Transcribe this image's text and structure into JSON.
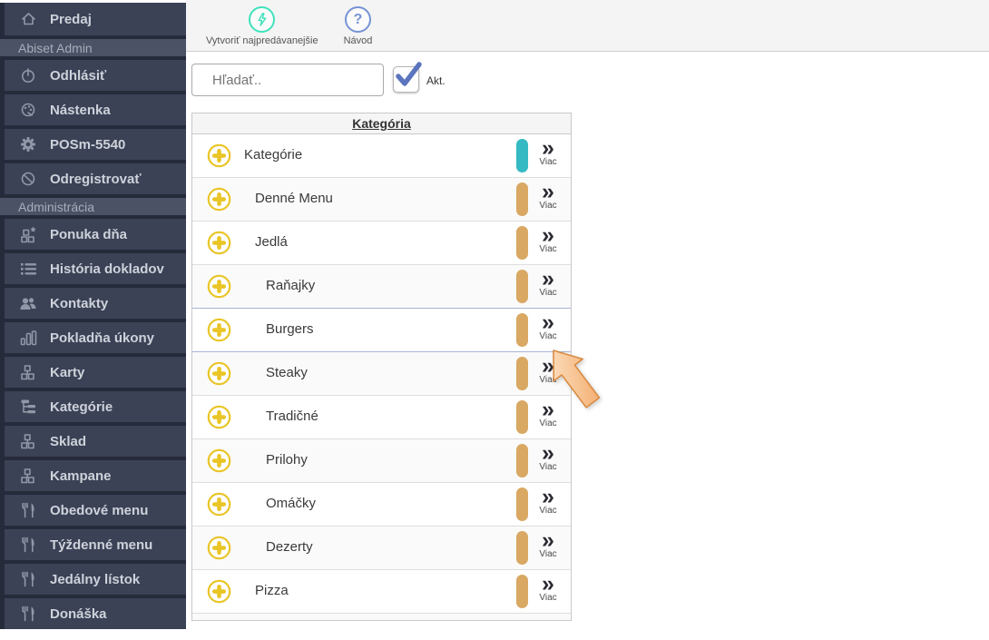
{
  "sidebar": {
    "items": [
      {
        "label": "Predaj",
        "icon": "home",
        "type": "item"
      },
      {
        "label": "Abiset Admin",
        "type": "header"
      },
      {
        "label": "Odhlásiť",
        "icon": "power",
        "type": "item"
      },
      {
        "label": "Nástenka",
        "icon": "palette",
        "type": "item"
      },
      {
        "label": "POSm-5540",
        "icon": "gear",
        "type": "item"
      },
      {
        "label": "Odregistrovať",
        "icon": "slash-circle",
        "type": "item"
      },
      {
        "label": "Administrácia",
        "type": "header"
      },
      {
        "label": "Ponuka dňa",
        "icon": "blocks-star",
        "type": "item"
      },
      {
        "label": "História dokladov",
        "icon": "list",
        "type": "item"
      },
      {
        "label": "Kontakty",
        "icon": "people",
        "type": "item"
      },
      {
        "label": "Pokladňa úkony",
        "icon": "bar-chart",
        "type": "item"
      },
      {
        "label": "Karty",
        "icon": "blocks",
        "type": "item"
      },
      {
        "label": "Kategórie",
        "icon": "tree",
        "type": "item"
      },
      {
        "label": "Sklad",
        "icon": "blocks",
        "type": "item"
      },
      {
        "label": "Kampane",
        "icon": "blocks",
        "type": "item"
      },
      {
        "label": "Obedové menu",
        "icon": "cutlery",
        "type": "item"
      },
      {
        "label": "Týždenné menu",
        "icon": "cutlery",
        "type": "item"
      },
      {
        "label": "Jedálny lístok",
        "icon": "cutlery",
        "type": "item"
      },
      {
        "label": "Donáška",
        "icon": "cutlery",
        "type": "item"
      }
    ]
  },
  "toolbar": {
    "buttons": [
      {
        "label": "Vytvoriť najpredávanejšie",
        "icon": "lightning-icon",
        "color": "#3fe2bc"
      },
      {
        "label": "Návod",
        "icon": "question-icon",
        "color": "#7693d4"
      }
    ]
  },
  "search": {
    "placeholder": "Hľadať..",
    "active_label": "Akt.",
    "checked": true
  },
  "table": {
    "header": "Kategória",
    "more_label": "Viac",
    "rows": [
      {
        "label": "Kategórie",
        "indent": 0,
        "bar_color": "#35b9c2"
      },
      {
        "label": "Denné Menu",
        "indent": 1,
        "bar_color": "#d9a863"
      },
      {
        "label": "Jedlá",
        "indent": 1,
        "bar_color": "#d9a863"
      },
      {
        "label": "Raňajky",
        "indent": 2,
        "bar_color": "#d9a863"
      },
      {
        "label": "Burgers",
        "indent": 2,
        "bar_color": "#d9a863",
        "highlight": true
      },
      {
        "label": "Steaky",
        "indent": 2,
        "bar_color": "#d9a863"
      },
      {
        "label": "Tradičné",
        "indent": 2,
        "bar_color": "#d9a863"
      },
      {
        "label": "Prilohy",
        "indent": 2,
        "bar_color": "#d9a863"
      },
      {
        "label": "Omáčky",
        "indent": 2,
        "bar_color": "#d9a863"
      },
      {
        "label": "Dezerty",
        "indent": 2,
        "bar_color": "#d9a863"
      },
      {
        "label": "Pizza",
        "indent": 1,
        "bar_color": "#d9a863"
      }
    ]
  },
  "colors": {
    "accent_yellow": "#e9c526",
    "accent_teal": "#35b9c2",
    "accent_tan": "#d9a863",
    "check_blue": "#5b74bd",
    "arrow_orange": "#f2a765"
  },
  "cursor": {
    "name": "pointer-arrow",
    "target": "Burgers Viac"
  }
}
